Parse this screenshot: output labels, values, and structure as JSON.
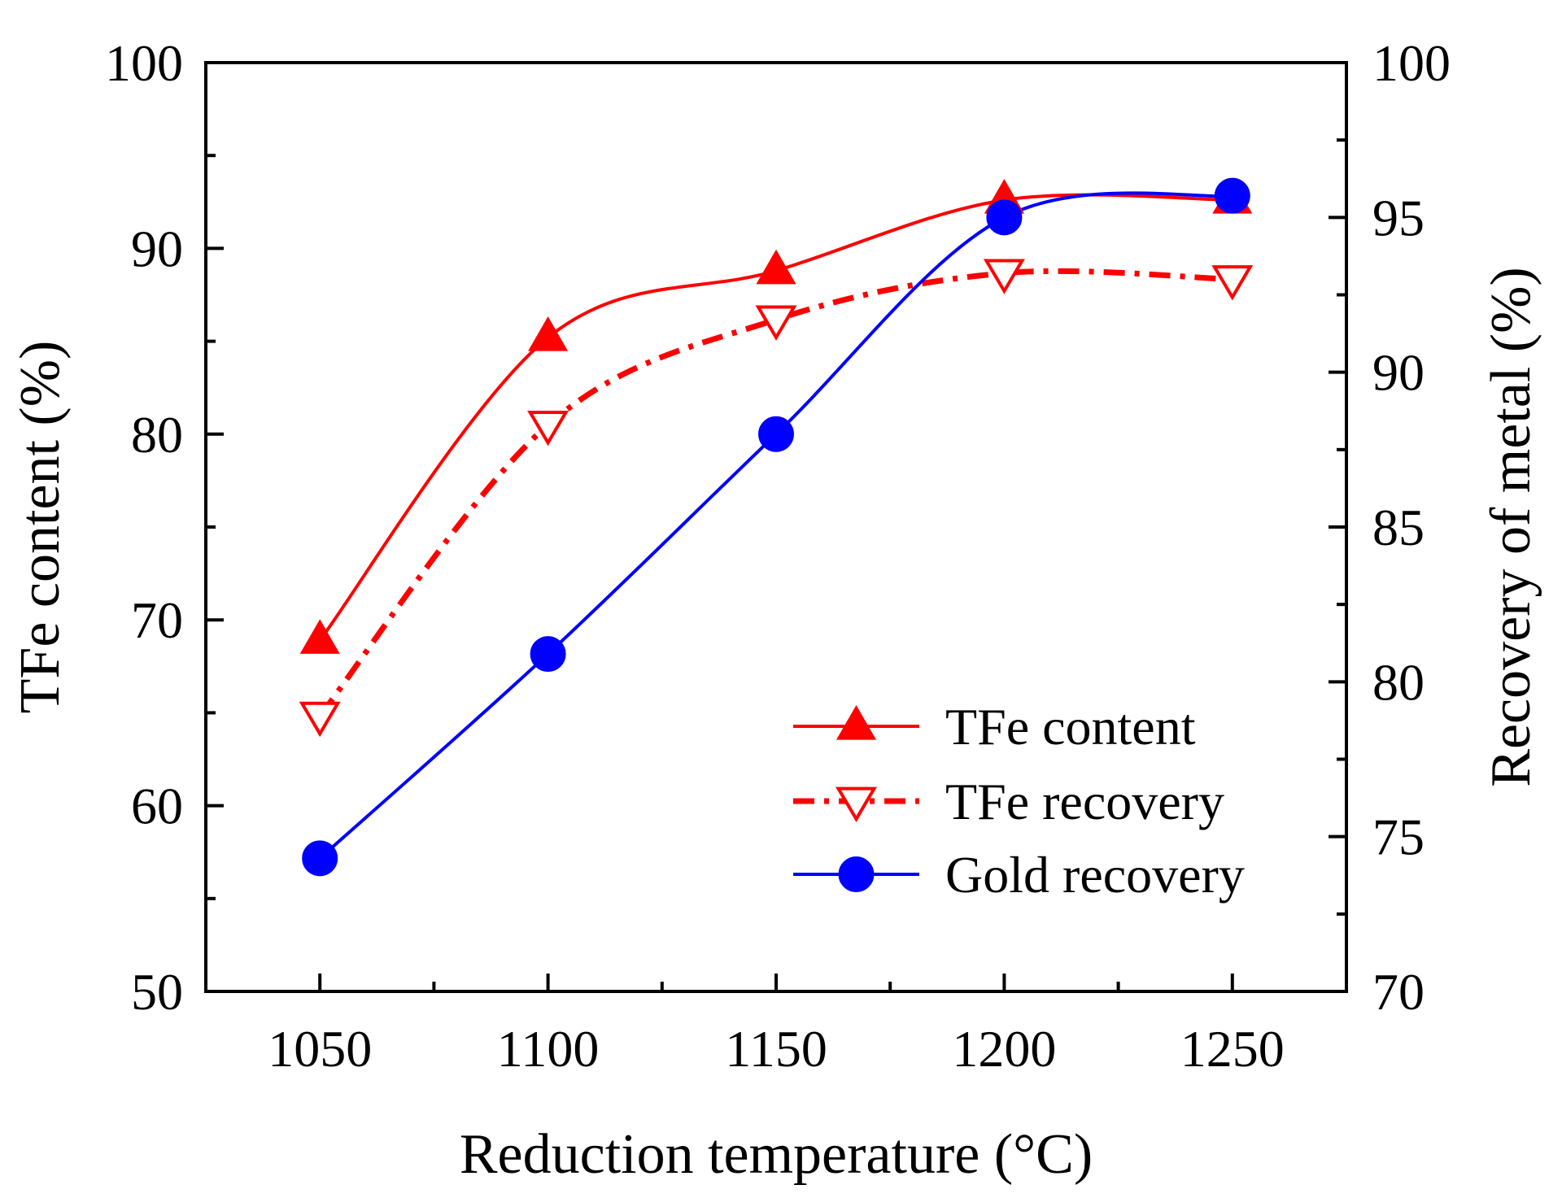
{
  "chart_data": {
    "type": "line",
    "title": "",
    "xlabel": "Reduction temperature  (°C)",
    "ylabel_left": "TFe content (%)",
    "ylabel_right": "Recovery of metal (%)",
    "x": [
      1050,
      1100,
      1150,
      1200,
      1250
    ],
    "xlim": [
      1025,
      1275
    ],
    "xticks": [
      1050,
      1100,
      1150,
      1200,
      1250
    ],
    "xtick_labels": [
      "1050",
      "1100",
      "1150",
      "1200",
      "1250"
    ],
    "ylim_left": [
      50,
      100
    ],
    "yticks_left": [
      50,
      60,
      70,
      80,
      90,
      100
    ],
    "ytick_labels_left": [
      "50",
      "60",
      "70",
      "80",
      "90",
      "100"
    ],
    "ylim_right": [
      70,
      100
    ],
    "yticks_right": [
      70,
      75,
      80,
      85,
      90,
      95,
      100
    ],
    "ytick_labels_right": [
      "70",
      "75",
      "80",
      "85",
      "90",
      "95",
      "100"
    ],
    "grid": false,
    "legend_position": "bottom-right",
    "series": [
      {
        "name": "TFe content",
        "axis": "left",
        "values": [
          68.9,
          85.2,
          88.8,
          92.6,
          92.6
        ],
        "color": "#ff0000",
        "marker": "triangle-up-filled",
        "line": "solid"
      },
      {
        "name": "TFe recovery",
        "axis": "right",
        "values": [
          78.9,
          88.3,
          91.7,
          93.2,
          93.0
        ],
        "color": "#ff0000",
        "marker": "triangle-down-open",
        "line": "dash-dot"
      },
      {
        "name": "Gold recovery",
        "axis": "right",
        "values": [
          74.3,
          80.9,
          88.0,
          95.0,
          95.7
        ],
        "color": "#0000ff",
        "marker": "circle-filled",
        "line": "solid"
      }
    ]
  }
}
